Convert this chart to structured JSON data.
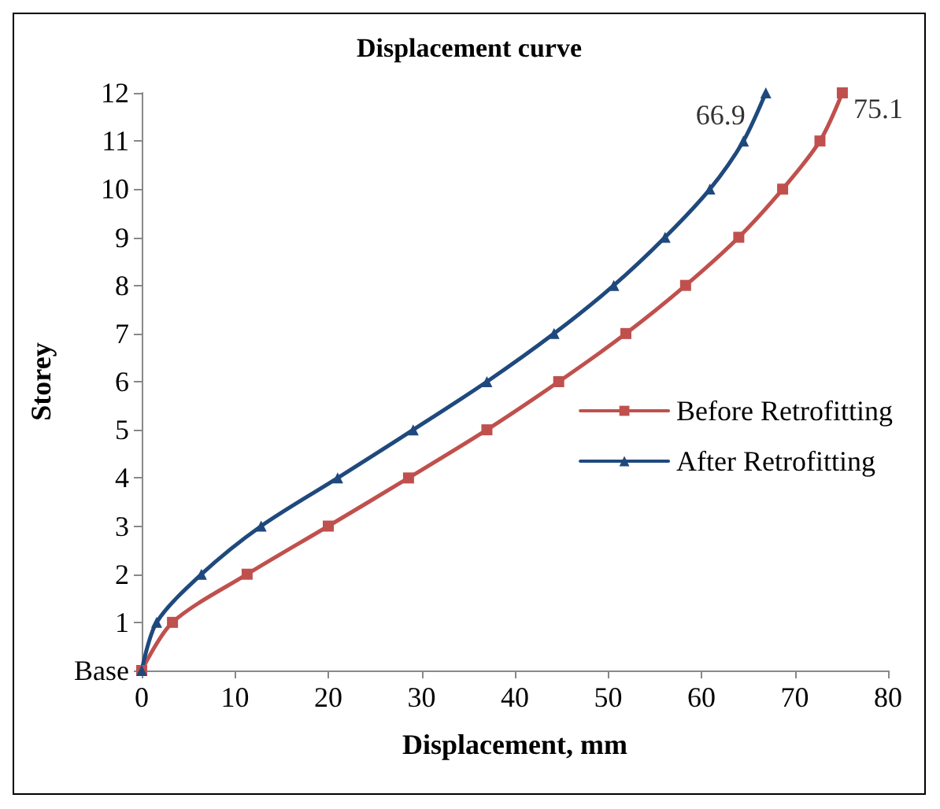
{
  "chart_data": {
    "type": "line",
    "title": "Displacement curve",
    "xlabel": "Displacement, mm",
    "ylabel": "Storey",
    "xlim": [
      0,
      80
    ],
    "xticks": [
      0,
      10,
      20,
      30,
      40,
      50,
      60,
      70,
      80
    ],
    "ylim": [
      0,
      12
    ],
    "yticks": [
      {
        "value": 0,
        "label": "Base"
      },
      1,
      2,
      3,
      4,
      5,
      6,
      7,
      8,
      9,
      10,
      11,
      12
    ],
    "grid": false,
    "legend": "right",
    "line_style": "solid",
    "series": [
      {
        "name": "Before Retrofitting",
        "color": "#c0504d",
        "marker": "square",
        "x": [
          0,
          3.3,
          11.3,
          20,
          28.6,
          37,
          44.7,
          51.9,
          58.3,
          64,
          68.7,
          72.7,
          75.1
        ],
        "values": [
          0,
          1,
          2,
          3,
          4,
          5,
          6,
          7,
          8,
          9,
          10,
          11,
          12
        ]
      },
      {
        "name": "After Retrofitting",
        "color": "#1f497d",
        "marker": "triangle",
        "x": [
          0,
          1.6,
          6.4,
          12.8,
          21,
          29.1,
          37,
          44.2,
          50.6,
          56.1,
          60.9,
          64.5,
          66.9
        ],
        "values": [
          0,
          1,
          2,
          3,
          4,
          5,
          6,
          7,
          8,
          9,
          10,
          11,
          12
        ]
      }
    ],
    "annotations": [
      {
        "text": "66.9",
        "x": 66.9,
        "y": 12
      },
      {
        "text": "75.1",
        "x": 75.1,
        "y": 12
      }
    ]
  }
}
